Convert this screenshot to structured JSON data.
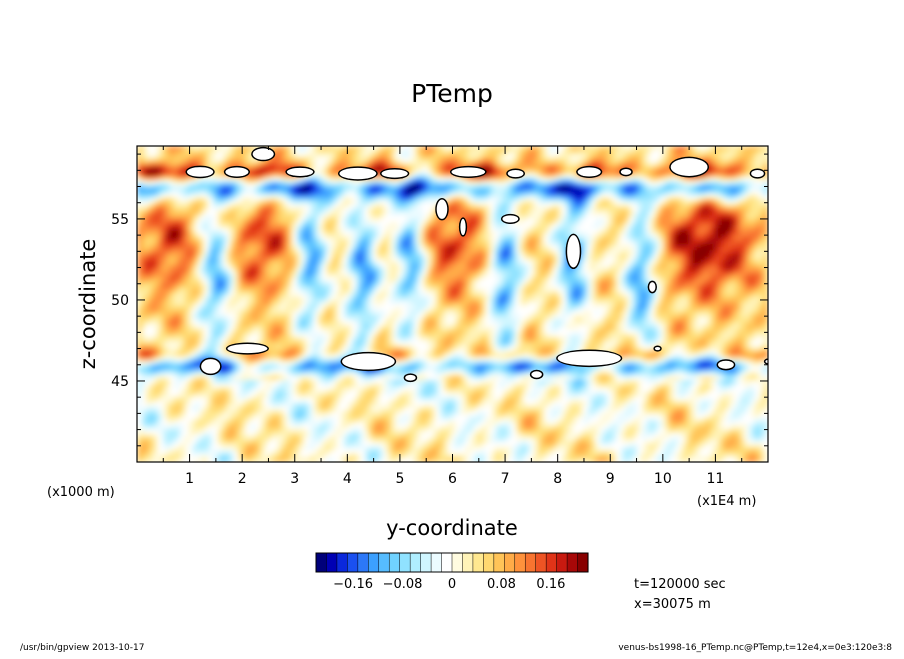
{
  "chart_data": {
    "type": "heatmap",
    "title": "PTemp",
    "xlabel": "y-coordinate",
    "ylabel": "z-coordinate",
    "x_unit_note": "(x1E4 m)",
    "y_unit_note": "(x1000 m)",
    "xlim": [
      0,
      12
    ],
    "ylim": [
      40,
      59.5
    ],
    "xticks": [
      "1",
      "2",
      "3",
      "4",
      "5",
      "6",
      "7",
      "8",
      "9",
      "10",
      "11"
    ],
    "yticks": [
      "45",
      "50",
      "55"
    ],
    "colorbar": {
      "range": [
        -0.22,
        0.22
      ],
      "tick_labels": [
        "−0.16",
        "−0.08",
        "0",
        "0.08",
        "0.16"
      ],
      "tick_values": [
        -0.16,
        -0.08,
        0,
        0.08,
        0.16
      ],
      "colors": [
        "#00007a",
        "#0000b4",
        "#0a28dc",
        "#1a50f0",
        "#2c78f8",
        "#3ca0ff",
        "#56bcff",
        "#70d2ff",
        "#90e2ff",
        "#b0eeff",
        "#d0f6ff",
        "#ebfbff",
        "#ffffff",
        "#fffbe0",
        "#fff3b8",
        "#ffe890",
        "#ffd870",
        "#ffc458",
        "#ffac48",
        "#ff923c",
        "#f87430",
        "#ee5424",
        "#e03418",
        "#c81a10",
        "#a80808",
        "#880000"
      ],
      "out_of_range_color": "#ffffff"
    },
    "features": {
      "warm_bands_z": [
        57.8,
        46.5
      ],
      "cold_bands_z": [
        57.0,
        46.0
      ],
      "cold_plume_columns_y": [
        1.5,
        3.3,
        4.3,
        5.2,
        7.0,
        8.3,
        9.6
      ],
      "warm_core_columns_y": [
        0.6,
        2.4,
        6.0,
        10.5,
        11.2
      ]
    }
  },
  "info": {
    "time": "t=120000 sec",
    "xpos": "x=30075 m"
  },
  "footer": {
    "left": "/usr/bin/gpview   2013-10-17",
    "right": "venus-bs1998-16_PTemp.nc@PTemp,t=12e4,x=0e3:120e3:8"
  }
}
